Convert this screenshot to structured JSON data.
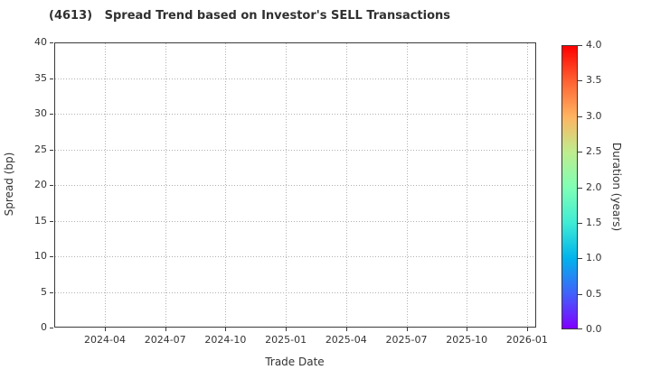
{
  "chart_data": {
    "type": "scatter",
    "title": "(4613)   Spread Trend based on Investor's SELL Transactions",
    "xlabel": "Trade Date",
    "ylabel": "Spread (bp)",
    "x_tick_labels": [
      "2024-04",
      "2024-07",
      "2024-10",
      "2025-01",
      "2025-04",
      "2025-07",
      "2025-10",
      "2026-01"
    ],
    "y_tick_labels": [
      "0",
      "5",
      "10",
      "15",
      "20",
      "25",
      "30",
      "35",
      "40"
    ],
    "y_ticks": [
      0,
      5,
      10,
      15,
      20,
      25,
      30,
      35,
      40
    ],
    "ylim": [
      0,
      40
    ],
    "grid": true,
    "grid_style": "dotted",
    "points": [],
    "colorbar": {
      "label": "Duration (years)",
      "tick_labels": [
        "0.0",
        "0.5",
        "1.0",
        "1.5",
        "2.0",
        "2.5",
        "3.0",
        "3.5",
        "4.0"
      ],
      "range": [
        0.0,
        4.0
      ],
      "colormap": "rainbow",
      "gradient_stops_bottom_to_top": [
        "#8000ff",
        "#4062fa",
        "#00b4ec",
        "#40ecd4",
        "#80ffb5",
        "#bfec8e",
        "#ffb461",
        "#ff6232",
        "#ff0000"
      ]
    },
    "colors": {
      "background": "#ffffff",
      "gridline": "#b0b0b0",
      "spine": "#3a3a3a",
      "text": "#333333"
    }
  }
}
